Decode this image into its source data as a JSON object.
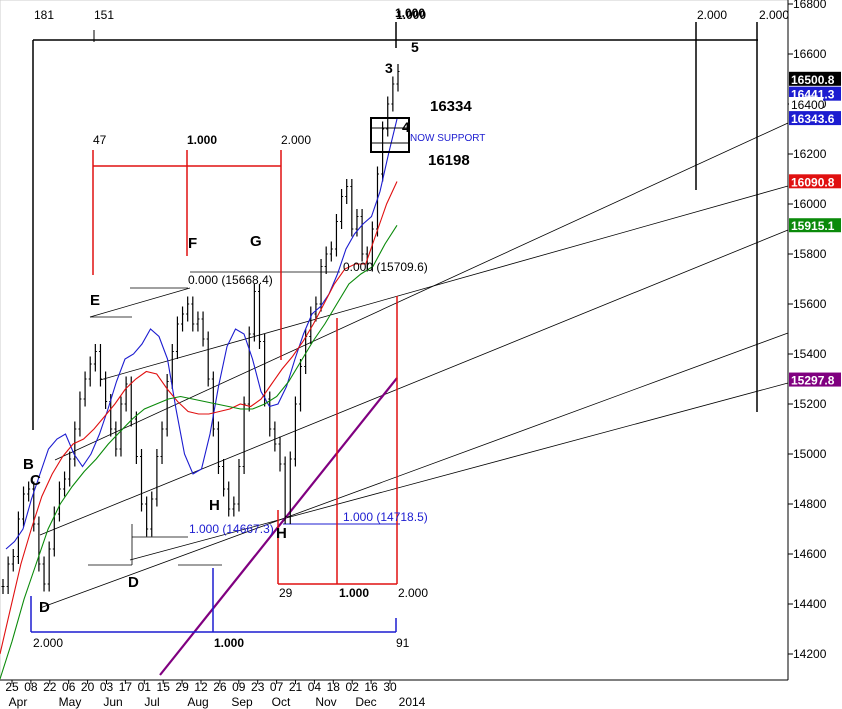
{
  "chart_data": {
    "type": "line",
    "title": "",
    "xlabel": "",
    "ylabel": "",
    "ylim": [
      14080,
      16800
    ],
    "grid": false,
    "y_ticks": [
      "14200",
      "14400",
      "14600",
      "14800",
      "15000",
      "15200",
      "15400",
      "15600",
      "15800",
      "16000",
      "16200",
      "16400",
      "16600",
      "16800"
    ],
    "x_tick_labels": [
      "25",
      "08",
      "22",
      "06",
      "20",
      "03",
      "17",
      "01",
      "15",
      "29",
      "12",
      "26",
      "09",
      "23",
      "07",
      "21",
      "04",
      "18",
      "02",
      "16",
      "30"
    ],
    "month_labels": [
      "Apr",
      "May",
      "Jun",
      "Jul",
      "Aug",
      "Sep",
      "Oct",
      "Nov",
      "Dec",
      "2014"
    ],
    "series": [
      {
        "type": "ohlc-bars",
        "color": "#000000",
        "values": [
          14470,
          14560,
          14590,
          14740,
          14840,
          14860,
          14720,
          14560,
          14480,
          14620,
          14760,
          14860,
          14900,
          14980,
          15100,
          15220,
          15300,
          15360,
          15410,
          15300,
          15210,
          15100,
          15020,
          15200,
          15280,
          15140,
          14990,
          14800,
          14700,
          14820,
          14990,
          15100,
          15290,
          15410,
          15520,
          15560,
          15600,
          15520,
          15540,
          15460,
          15300,
          15100,
          14950,
          14860,
          14780,
          14800,
          14950,
          15200,
          15480,
          15650,
          15450,
          15220,
          15100,
          15040,
          14960,
          14750,
          14980,
          15200,
          15350,
          15470,
          15560,
          15600,
          15750,
          15800,
          15820,
          15930,
          16030,
          16070,
          15900,
          15950,
          15800,
          15760,
          15900,
          16120,
          16300,
          16400,
          16480,
          16530
        ]
      },
      {
        "name": "",
        "type": "moving-average",
        "color": "#1c1cd0",
        "values": [
          14620,
          14650,
          14700,
          14820,
          14920,
          15020,
          15060,
          15080,
          15000,
          14950,
          15000,
          15080,
          15180,
          15290,
          15380,
          15400,
          15440,
          15500,
          15470,
          15380,
          15180,
          15000,
          14920,
          14940,
          15080,
          15270,
          15430,
          15500,
          15480,
          15380,
          15250,
          15190,
          15200,
          15270,
          15380,
          15480,
          15560,
          15590,
          15640,
          15720,
          15820,
          15880,
          15920,
          15950,
          16050,
          16200,
          16340
        ]
      },
      {
        "name": "",
        "type": "moving-average",
        "color": "#e01010",
        "values": [
          14200,
          14380,
          14560,
          14700,
          14830,
          14920,
          14990,
          15040,
          15060,
          15100,
          15150,
          15200,
          15260,
          15300,
          15330,
          15320,
          15260,
          15210,
          15170,
          15160,
          15160,
          15170,
          15180,
          15200,
          15190,
          15220,
          15280,
          15340,
          15390,
          15450,
          15520,
          15600,
          15680,
          15740,
          15760,
          15760,
          15880,
          16000,
          16090
        ]
      },
      {
        "name": "",
        "type": "moving-average",
        "color": "#0a8a0a",
        "values": [
          14100,
          14250,
          14420,
          14560,
          14700,
          14800,
          14870,
          14930,
          14980,
          15040,
          15090,
          15140,
          15180,
          15200,
          15220,
          15230,
          15220,
          15210,
          15200,
          15190,
          15180,
          15180,
          15200,
          15230,
          15290,
          15370,
          15450,
          15520,
          15600,
          15680,
          15720,
          15750,
          15840,
          15915
        ]
      }
    ],
    "last_value_labels": [
      {
        "value": "16500.8",
        "color": "#000000"
      },
      {
        "value": "16441.3",
        "color": "#1c1cd0"
      },
      {
        "value": "16400",
        "color": "#ffffff"
      },
      {
        "value": "16343.6",
        "color": "#1c1cd0"
      },
      {
        "value": "16090.8",
        "color": "#e01010"
      },
      {
        "value": "15915.1",
        "color": "#0a8a0a"
      },
      {
        "value": "15297.8",
        "color": "#800080"
      }
    ],
    "annotations": {
      "big_timing": [
        "181",
        "151",
        "1.000",
        "1.000",
        "2.000",
        "2.000"
      ],
      "red_timing_top": [
        "47",
        "1.000",
        "2.000"
      ],
      "red_timing_bottom": [
        "29",
        "1.000",
        "2.000"
      ],
      "blue_timing": [
        "2.000",
        "1.000",
        "91"
      ],
      "ratio_labels": [
        "0.000 (15668.4)",
        "0.000 (15709.6)",
        "1.000 (14667.3)",
        "1.000 (14718.5)"
      ],
      "wave_labels": [
        "B",
        "C",
        "D",
        "E",
        "D",
        "F",
        "G",
        "H",
        "H",
        "3",
        "4",
        "5"
      ],
      "zone_high": "16334",
      "zone_low": "16198",
      "zone_text": "NOW SUPPORT"
    },
    "colors": {
      "price": "#000000",
      "ma_fast": "#1c1cd0",
      "ma_mid": "#e01010",
      "ma_slow": "#0a8a0a",
      "trendline": "#800080",
      "timing_red": "#e01010",
      "timing_blue": "#1c1cd0"
    }
  }
}
